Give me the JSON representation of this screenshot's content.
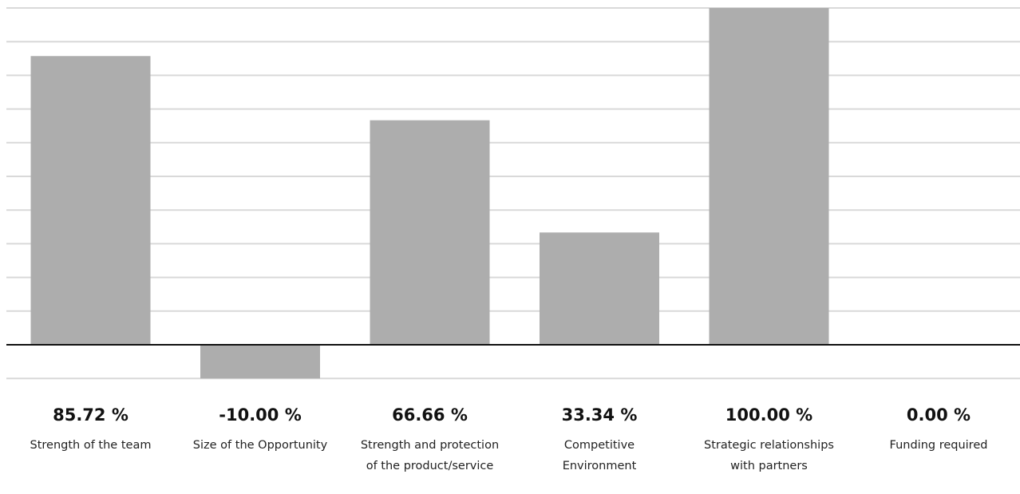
{
  "chart_data": {
    "type": "bar",
    "categories": [
      [
        "Strength of the team"
      ],
      [
        "Size of the Opportunity"
      ],
      [
        "Strength and protection",
        "of the product/service"
      ],
      [
        "Competitive",
        "Environment"
      ],
      [
        "Strategic relationships",
        "with partners"
      ],
      [
        "Funding required"
      ]
    ],
    "values": [
      85.72,
      -10.0,
      66.66,
      33.34,
      100.0,
      0.0
    ],
    "value_labels": [
      "85.72 %",
      "-10.00 %",
      "66.66 %",
      "33.34 %",
      "100.00 %",
      "0.00 %"
    ],
    "ylim": [
      -10,
      100
    ],
    "grid": true,
    "bar_color": "#adadad",
    "grid_color": "#d9d9d9",
    "axis_color": "#111111"
  }
}
